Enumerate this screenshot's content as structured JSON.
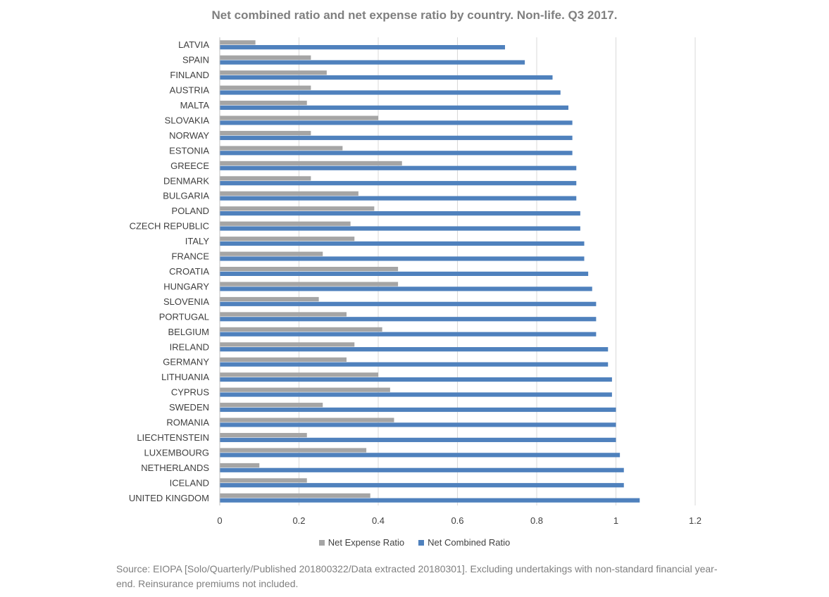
{
  "chart_data": {
    "type": "bar",
    "orientation": "horizontal",
    "title": "Net combined ratio and net expense ratio by country. Non-life. Q3 2017.",
    "categories": [
      "LATVIA",
      "SPAIN",
      "FINLAND",
      "AUSTRIA",
      "MALTA",
      "SLOVAKIA",
      "NORWAY",
      "ESTONIA",
      "GREECE",
      "DENMARK",
      "BULGARIA",
      "POLAND",
      "CZECH REPUBLIC",
      "ITALY",
      "FRANCE",
      "CROATIA",
      "HUNGARY",
      "SLOVENIA",
      "PORTUGAL",
      "BELGIUM",
      "IRELAND",
      "GERMANY",
      "LITHUANIA",
      "CYPRUS",
      "SWEDEN",
      "ROMANIA",
      "LIECHTENSTEIN",
      "LUXEMBOURG",
      "NETHERLANDS",
      "ICELAND",
      "UNITED KINGDOM"
    ],
    "series": [
      {
        "name": "Net Expense Ratio",
        "color": "#a5a5a5",
        "values": [
          0.09,
          0.23,
          0.27,
          0.23,
          0.22,
          0.4,
          0.23,
          0.31,
          0.46,
          0.23,
          0.35,
          0.39,
          0.33,
          0.34,
          0.26,
          0.45,
          0.45,
          0.25,
          0.32,
          0.41,
          0.34,
          0.32,
          0.4,
          0.43,
          0.26,
          0.44,
          0.22,
          0.37,
          0.1,
          0.22,
          0.38
        ]
      },
      {
        "name": "Net Combined Ratio",
        "color": "#4f81bd",
        "values": [
          0.72,
          0.77,
          0.84,
          0.86,
          0.88,
          0.89,
          0.89,
          0.89,
          0.9,
          0.9,
          0.9,
          0.91,
          0.91,
          0.92,
          0.92,
          0.93,
          0.94,
          0.95,
          0.95,
          0.95,
          0.98,
          0.98,
          0.99,
          0.99,
          1.0,
          1.0,
          1.0,
          1.01,
          1.02,
          1.02,
          1.06
        ]
      }
    ],
    "xlim": [
      0,
      1.2
    ],
    "xticks": [
      0,
      0.2,
      0.4,
      0.6,
      0.8,
      1,
      1.2
    ],
    "xtick_labels": [
      "0",
      "0.2",
      "0.4",
      "0.6",
      "0.8",
      "1",
      "1.2"
    ],
    "grid": "vertical",
    "legend_position": "bottom"
  },
  "source_note": "Source: EIOPA [Solo/Quarterly/Published 201800322/Data extracted 20180301]. Excluding undertakings with non-standard financial year-end. Reinsurance premiums not included."
}
